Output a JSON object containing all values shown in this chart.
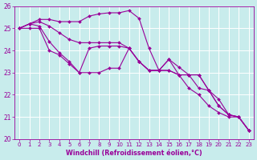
{
  "xlabel": "Windchill (Refroidissement éolien,°C)",
  "bg_color": "#c8ecec",
  "line_color": "#990099",
  "grid_color": "#ffffff",
  "xlim_min": -0.5,
  "xlim_max": 23.5,
  "ylim": [
    20,
    26
  ],
  "yticks": [
    20,
    21,
    22,
    23,
    24,
    25,
    26
  ],
  "xticks": [
    0,
    1,
    2,
    3,
    4,
    5,
    6,
    7,
    8,
    9,
    10,
    11,
    12,
    13,
    14,
    15,
    16,
    17,
    18,
    19,
    20,
    21,
    22,
    23
  ],
  "series": [
    [
      25.0,
      25.2,
      25.4,
      25.4,
      25.3,
      25.3,
      25.3,
      25.55,
      25.65,
      25.7,
      25.7,
      25.8,
      25.45,
      24.1,
      23.1,
      23.1,
      22.9,
      22.9,
      22.9,
      22.2,
      21.5,
      21.1,
      21.0,
      20.4
    ],
    [
      25.0,
      25.2,
      25.3,
      25.1,
      24.8,
      24.5,
      24.35,
      24.35,
      24.35,
      24.35,
      24.35,
      24.1,
      23.5,
      23.1,
      23.1,
      23.6,
      23.25,
      22.9,
      22.9,
      22.2,
      21.8,
      21.1,
      21.0,
      20.4
    ],
    [
      25.0,
      25.2,
      25.1,
      24.4,
      23.9,
      23.5,
      23.0,
      24.1,
      24.2,
      24.2,
      24.2,
      24.1,
      23.5,
      23.1,
      23.1,
      23.6,
      22.9,
      22.9,
      22.3,
      22.2,
      21.5,
      21.1,
      21.0,
      20.4
    ],
    [
      25.0,
      25.0,
      25.0,
      24.0,
      23.8,
      23.4,
      23.0,
      23.0,
      23.0,
      23.2,
      23.2,
      24.1,
      23.5,
      23.1,
      23.1,
      23.1,
      22.9,
      22.3,
      22.0,
      21.5,
      21.2,
      21.0,
      21.0,
      20.4
    ]
  ]
}
